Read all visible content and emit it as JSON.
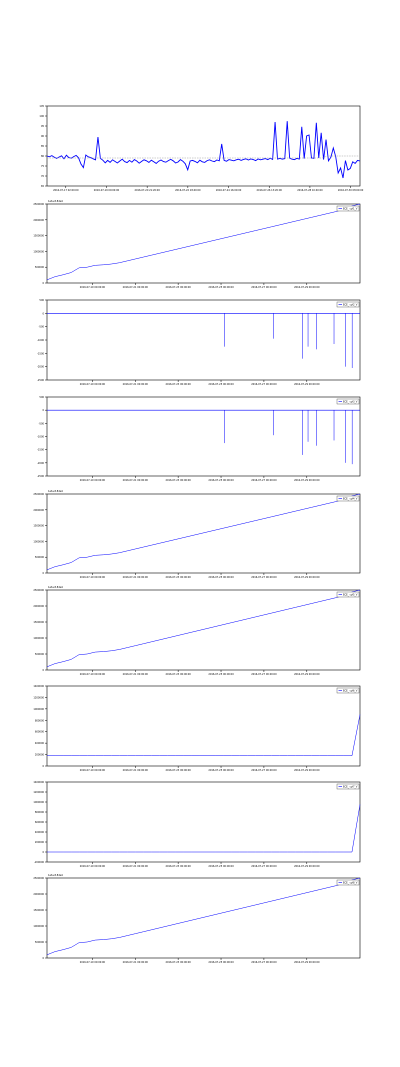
{
  "colors": {
    "series": "#0000ff",
    "reference": "#9a9a9a",
    "axis": "#000000",
    "background": "#ffffff"
  },
  "chart_data": [
    {
      "type": "line",
      "title": "",
      "ylim": [
        65,
        105
      ],
      "yticks": [
        "65",
        "70",
        "75",
        "80",
        "85",
        "90",
        "95",
        "100",
        "105"
      ],
      "xticks": [
        "2016-07-17 02:00:00",
        "2016-07-19 00:00:00",
        "2016-07-20 21:20:00",
        "2016-07-22 18:40:00",
        "2016-07-24 16:00:00",
        "2016-07-26 13:20:00",
        "2016-07-28 10:40:00",
        "2016-07-30 08:00:00"
      ],
      "series": [
        {
          "name": "",
          "values": [
            80,
            79.6,
            80.2,
            79.4,
            78.8,
            79.5,
            80.1,
            78.6,
            80.4,
            79.2,
            78.9,
            79.7,
            80.3,
            79.1,
            76,
            74.2,
            80.5,
            79.6,
            79.2,
            78.6,
            78.1,
            89.5,
            78.8,
            77.9,
            76.6,
            77.8,
            76.8,
            78.1,
            77.3,
            76.5,
            77.5,
            78.4,
            77.2,
            76.7,
            77.8,
            76.9,
            78.2,
            77.5,
            76.4,
            77.3,
            78.1,
            77.6,
            76.8,
            77.9,
            77.1,
            76.3,
            77.4,
            78,
            77.2,
            76.9,
            77.7,
            78.3,
            77.6,
            76.5,
            77,
            78.2,
            77.4,
            76.1,
            73.1,
            77.5,
            77.8,
            77.3,
            76.6,
            77.9,
            77.1,
            76.8,
            77.7,
            78.1,
            77.5,
            77.2,
            78,
            77.6,
            86,
            77.8,
            77.4,
            78.2,
            77.9,
            77.6,
            78.1,
            78.4,
            77.8,
            78.3,
            78.6,
            78,
            78.5,
            78.2,
            77.7,
            78.5,
            78.1,
            78.4,
            78.7,
            78.2,
            78.9,
            78.3,
            97,
            78.5,
            78.8,
            78.4,
            78.7,
            97.4,
            78.9,
            78.4,
            78.2,
            78.8,
            78.5,
            94.6,
            78.7,
            90,
            90.5,
            79,
            78.8,
            96.6,
            79,
            91.6,
            78.2,
            88.2,
            77.6,
            79.4,
            84,
            79.6,
            71.5,
            74,
            69,
            77.7,
            73,
            73.8,
            77.1,
            76.3,
            77.8,
            77.5
          ]
        },
        {
          "name": "",
          "values": [
            79,
            79,
            79,
            79,
            79,
            79,
            79,
            79,
            79,
            79,
            79,
            79,
            79,
            79,
            79,
            79,
            79,
            79,
            79,
            79,
            79,
            79,
            79,
            79,
            79,
            79,
            79,
            79,
            79,
            79,
            79,
            79,
            79,
            79,
            79,
            79,
            79,
            79,
            79,
            79,
            79,
            79,
            79,
            79,
            79,
            79,
            79,
            79,
            79,
            79,
            79,
            79,
            79,
            79,
            79,
            79,
            79,
            79,
            79,
            79,
            79,
            79,
            79,
            79,
            79,
            79,
            79,
            79,
            79,
            79,
            79,
            79,
            79,
            79,
            79,
            79,
            79,
            79,
            79,
            79,
            79,
            79,
            79,
            79,
            79,
            79,
            79,
            79,
            79,
            79,
            79,
            79,
            79,
            79,
            79,
            79,
            79,
            79,
            79,
            79,
            79,
            79,
            79,
            79,
            79,
            79,
            79,
            79,
            79,
            79,
            79,
            79,
            79,
            79,
            79,
            79,
            79,
            79,
            79.5,
            79.8,
            80,
            80,
            80,
            80,
            80,
            80,
            80,
            80,
            80,
            80,
            80,
            80,
            80,
            80
          ]
        }
      ]
    },
    {
      "type": "line",
      "offset_label": "1e6+8.84e4",
      "ylim": [
        0,
        2500000
      ],
      "yticks": [
        "0",
        "500000",
        "1000000",
        "1500000",
        "2000000",
        "2500000"
      ],
      "xticks": [
        "2016-07-19 00:00:00",
        "2016-07-21 00:00:00",
        "2016-07-23 00:00:00",
        "2016-07-25 00:00:00",
        "2016-07-27 00:00:00",
        "2016-07-29 00:00:00"
      ],
      "series": [
        {
          "name": "ECE_ cyl1_V",
          "values": [
            100000,
            200000,
            260000,
            330000,
            480000,
            500000,
            560000,
            575000,
            600000,
            640000,
            700000,
            760000,
            820000,
            880000,
            940000,
            1000000,
            1060000,
            1120000,
            1180000,
            1240000,
            1300000,
            1360000,
            1420000,
            1480000,
            1540000,
            1600000,
            1660000,
            1720000,
            1780000,
            1840000,
            1900000,
            1960000,
            2020000,
            2080000,
            2140000,
            2200000,
            2260000,
            2330000,
            2440000,
            2500000
          ]
        }
      ]
    },
    {
      "type": "line",
      "ylim": [
        -2500,
        500
      ],
      "yticks": [
        "-2500",
        "-2000",
        "-1500",
        "-1000",
        "-500",
        "0",
        "500"
      ],
      "xticks": [
        "2016-07-19 00:00:00",
        "2016-07-21 00:00:00",
        "2016-07-23 00:00:00",
        "2016-07-25 00:00:00",
        "2016-07-27 00:00:00",
        "2016-07-29 00:00:00"
      ],
      "series": [
        {
          "name": "ECE_ cyl2_V",
          "baseline": 0,
          "spikes": [
            {
              "x": 0.567,
              "y": -1250
            },
            {
              "x": 0.723,
              "y": -950
            },
            {
              "x": 0.817,
              "y": -1700
            },
            {
              "x": 0.834,
              "y": -1250
            },
            {
              "x": 0.861,
              "y": -1350
            },
            {
              "x": 0.917,
              "y": -1150
            },
            {
              "x": 0.954,
              "y": -2000
            },
            {
              "x": 0.975,
              "y": -2050
            }
          ]
        }
      ]
    },
    {
      "type": "line",
      "ylim": [
        -2500,
        500
      ],
      "yticks": [
        "-2500",
        "-2000",
        "-1500",
        "-1000",
        "-500",
        "0",
        "500"
      ],
      "xticks": [
        "2016-07-19 00:00:00",
        "2016-07-21 00:00:00",
        "2016-07-23 00:00:00",
        "2016-07-25 00:00:00",
        "2016-07-27 00:00:00",
        "2016-07-29 00:00:00"
      ],
      "series": [
        {
          "name": "ECE_ cyl3_V",
          "baseline": 0,
          "spikes": [
            {
              "x": 0.567,
              "y": -1250
            },
            {
              "x": 0.723,
              "y": -950
            },
            {
              "x": 0.817,
              "y": -1700
            },
            {
              "x": 0.834,
              "y": -1200
            },
            {
              "x": 0.861,
              "y": -1350
            },
            {
              "x": 0.917,
              "y": -1150
            },
            {
              "x": 0.954,
              "y": -2000
            },
            {
              "x": 0.975,
              "y": -2050
            }
          ]
        }
      ]
    },
    {
      "type": "line",
      "offset_label": "1e6+8.84e4",
      "ylim": [
        0,
        2500000
      ],
      "yticks": [
        "0",
        "500000",
        "1000000",
        "1500000",
        "2000000",
        "2500000"
      ],
      "xticks": [
        "2016-07-19 00:00:00",
        "2016-07-21 00:00:00",
        "2016-07-23 00:00:00",
        "2016-07-25 00:00:00",
        "2016-07-27 00:00:00",
        "2016-07-29 00:00:00"
      ],
      "series": [
        {
          "name": "ECE_ cyl4_V",
          "values": [
            100000,
            200000,
            260000,
            330000,
            480000,
            500000,
            560000,
            575000,
            600000,
            640000,
            700000,
            760000,
            820000,
            880000,
            940000,
            1000000,
            1060000,
            1120000,
            1180000,
            1240000,
            1300000,
            1360000,
            1420000,
            1480000,
            1540000,
            1600000,
            1660000,
            1720000,
            1780000,
            1840000,
            1900000,
            1960000,
            2020000,
            2080000,
            2140000,
            2200000,
            2260000,
            2330000,
            2440000,
            2500000
          ]
        }
      ]
    },
    {
      "type": "line",
      "offset_label": "1e6+8.84e4",
      "ylim": [
        0,
        2500000
      ],
      "yticks": [
        "0",
        "500000",
        "1000000",
        "1500000",
        "2000000",
        "2500000"
      ],
      "xticks": [
        "2016-07-19 00:00:00",
        "2016-07-21 00:00:00",
        "2016-07-23 00:00:00",
        "2016-07-25 00:00:00",
        "2016-07-27 00:00:00",
        "2016-07-29 00:00:00"
      ],
      "series": [
        {
          "name": "ECE_ cyl5_V",
          "values": [
            100000,
            200000,
            260000,
            330000,
            480000,
            500000,
            560000,
            575000,
            600000,
            640000,
            700000,
            760000,
            820000,
            880000,
            940000,
            1000000,
            1060000,
            1120000,
            1180000,
            1240000,
            1300000,
            1360000,
            1420000,
            1480000,
            1540000,
            1600000,
            1660000,
            1720000,
            1780000,
            1840000,
            1900000,
            1960000,
            2020000,
            2080000,
            2140000,
            2200000,
            2260000,
            2330000,
            2440000,
            2500000
          ]
        }
      ]
    },
    {
      "type": "line",
      "ylim": [
        0,
        1400000
      ],
      "yticks": [
        "0",
        "200000",
        "400000",
        "600000",
        "800000",
        "1000000",
        "1200000",
        "1400000"
      ],
      "xticks": [
        "2016-07-19 00:00:00",
        "2016-07-21 00:00:00",
        "2016-07-23 00:00:00",
        "2016-07-25 00:00:00",
        "2016-07-27 00:00:00",
        "2016-07-29 00:00:00"
      ],
      "series": [
        {
          "name": "ECE_ cyl6_V",
          "values": [
            180000,
            180000,
            180000,
            180000,
            180000,
            180000,
            180000,
            180000,
            180000,
            180000,
            180000,
            180000,
            180000,
            180000,
            180000,
            180000,
            180000,
            180000,
            180000,
            180000,
            180000,
            180000,
            180000,
            180000,
            180000,
            180000,
            180000,
            180000,
            180000,
            180000,
            180000,
            180000,
            180000,
            180000,
            180000,
            180000,
            180000,
            180000,
            180000,
            900000
          ]
        }
      ]
    },
    {
      "type": "line",
      "ylim": [
        -200000,
        1400000
      ],
      "yticks": [
        "-200000",
        "0",
        "200000",
        "400000",
        "600000",
        "800000",
        "1000000",
        "1200000",
        "1400000"
      ],
      "xticks": [
        "2016-07-19 00:00:00",
        "2016-07-21 00:00:00",
        "2016-07-23 00:00:00",
        "2016-07-25 00:00:00",
        "2016-07-27 00:00:00",
        "2016-07-29 00:00:00"
      ],
      "series": [
        {
          "name": "ECE_ cyl7_V",
          "values": [
            0,
            0,
            0,
            0,
            0,
            0,
            0,
            0,
            0,
            0,
            0,
            0,
            0,
            0,
            0,
            0,
            0,
            0,
            0,
            0,
            0,
            0,
            0,
            0,
            0,
            0,
            0,
            0,
            0,
            0,
            0,
            0,
            0,
            0,
            0,
            0,
            0,
            0,
            0,
            950000
          ]
        }
      ]
    },
    {
      "type": "line",
      "offset_label": "1e6+8.84e4",
      "ylim": [
        0,
        2500000
      ],
      "yticks": [
        "0",
        "500000",
        "1000000",
        "1500000",
        "2000000",
        "2500000"
      ],
      "xticks": [
        "2016-07-19 00:00:00",
        "2016-07-21 00:00:00",
        "2016-07-23 00:00:00",
        "2016-07-25 00:00:00",
        "2016-07-27 00:00:00",
        "2016-07-29 00:00:00"
      ],
      "series": [
        {
          "name": "ECE_ cyl8_V",
          "values": [
            100000,
            200000,
            260000,
            330000,
            480000,
            500000,
            560000,
            575000,
            600000,
            640000,
            700000,
            760000,
            820000,
            880000,
            940000,
            1000000,
            1060000,
            1120000,
            1180000,
            1240000,
            1300000,
            1360000,
            1420000,
            1480000,
            1540000,
            1600000,
            1660000,
            1720000,
            1780000,
            1840000,
            1900000,
            1960000,
            2020000,
            2080000,
            2140000,
            2200000,
            2260000,
            2330000,
            2440000,
            2500000
          ]
        }
      ]
    }
  ]
}
